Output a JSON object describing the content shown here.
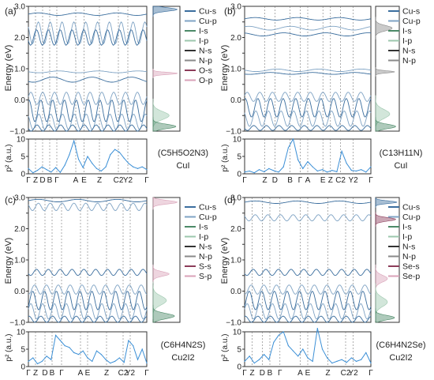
{
  "figure": {
    "background": "#ffffff",
    "axis_color": "#333333",
    "kpath_line_color": "#777777"
  },
  "chart_data": [
    {
      "type": "line",
      "panel": "a",
      "panel_label": "(a)",
      "compound_name": "(C5H5O2N3)",
      "compound_sub": "CuI",
      "band_ylabel": "Energy (eV)",
      "p2_ylabel": "p² (a.u.)",
      "band_ylim": [
        -1.0,
        3.0
      ],
      "band_yticks": [
        "-1.0",
        "-0.5",
        "0.0",
        "0.5",
        "1.0",
        "1.5",
        "2.0",
        "2.5",
        "3.0"
      ],
      "band_ytick_labels": [
        "−1.0",
        "",
        "0.0",
        "",
        "1.0",
        "",
        "2.0",
        "",
        "3.0"
      ],
      "p2_ylim": [
        0,
        10
      ],
      "p2_ytick_labels": [
        "0",
        "5",
        "10"
      ],
      "kpath_labels": [
        "Γ",
        "Z",
        "D",
        "B",
        "Γ",
        "A",
        "E",
        "Z",
        "C2",
        "Y2",
        "Γ"
      ],
      "kpath_x": [
        0,
        0.06,
        0.12,
        0.18,
        0.24,
        0.4,
        0.47,
        0.6,
        0.76,
        0.84,
        1.0
      ],
      "legend": [
        "Cu-s",
        "Cu-p",
        "I-s",
        "I-p",
        "N-s",
        "N-p",
        "O-s",
        "O-p"
      ],
      "legend_colors": [
        "#3b6e9e",
        "#7fa3c4",
        "#4c8a68",
        "#9cc7ad",
        "#333333",
        "#8a8a8a",
        "#8c3c5a",
        "#d9a2b8"
      ],
      "pdos_bands": [
        {
          "center": 2.9,
          "width": 0.08,
          "height": 0.9,
          "color": "#3b6e9e"
        },
        {
          "center": 0.85,
          "width": 0.05,
          "height": 0.9,
          "color": "#d9a2b8"
        },
        {
          "center": -0.5,
          "width": 0.18,
          "height": 0.6,
          "color": "#9cc7ad"
        },
        {
          "center": -0.85,
          "width": 0.1,
          "height": 0.85,
          "color": "#4c8a68"
        }
      ],
      "bands": [
        {
          "shape": "flat",
          "level": 2.75,
          "amp": 0.04
        },
        {
          "shape": "wave",
          "level": 2.15,
          "amp": 0.35
        },
        {
          "shape": "wave",
          "level": 2.0,
          "amp": 0.25
        },
        {
          "shape": "flat",
          "level": 0.9,
          "amp": 0.03
        },
        {
          "shape": "flat",
          "level": 0.65,
          "amp": 0.08
        },
        {
          "shape": "wave",
          "level": 0.05,
          "amp": 0.2
        },
        {
          "shape": "wave",
          "level": -0.35,
          "amp": 0.35
        },
        {
          "shape": "wave",
          "level": -0.7,
          "amp": 0.25
        },
        {
          "shape": "wave",
          "level": -0.9,
          "amp": 0.1
        }
      ],
      "p2_values": [
        1.5,
        0.3,
        1.0,
        2.0,
        1.2,
        0.5,
        1.8,
        0.4,
        2.5,
        5.5,
        9.5,
        4.2,
        1.8,
        5.0,
        3.0,
        1.5,
        0.8,
        2.0,
        5.5,
        7.0,
        6.2,
        4.5,
        3.0,
        2.0,
        1.5,
        2.0,
        1.2
      ]
    },
    {
      "type": "line",
      "panel": "b",
      "panel_label": "(b)",
      "compound_name": "(C13H11N)",
      "compound_sub": "CuI",
      "band_ylabel": "Energy (eV)",
      "p2_ylabel": "p² (a.u.)",
      "band_ylim": [
        -1.0,
        3.0
      ],
      "band_yticks": [
        "-1.0",
        "-0.5",
        "0.0",
        "0.5",
        "1.0",
        "1.5",
        "2.0",
        "2.5",
        "3.0"
      ],
      "band_ytick_labels": [
        "−1.0",
        "",
        "0.0",
        "",
        "1.0",
        "",
        "2.0",
        "",
        "3.0"
      ],
      "p2_ylim": [
        0,
        10
      ],
      "p2_ytick_labels": [
        "0",
        "5",
        "10"
      ],
      "kpath_labels": [
        "Γ",
        "Z",
        "D",
        "B",
        "Γ",
        "A",
        "E",
        "Z",
        "C2",
        "Y2",
        "Γ"
      ],
      "kpath_x": [
        0,
        0.16,
        0.24,
        0.36,
        0.44,
        0.5,
        0.62,
        0.68,
        0.76,
        0.86,
        1.0
      ],
      "legend": [
        "Cu-s",
        "Cu-p",
        "I-s",
        "I-p",
        "N-s",
        "N-p"
      ],
      "legend_colors": [
        "#3b6e9e",
        "#7fa3c4",
        "#4c8a68",
        "#9cc7ad",
        "#333333",
        "#8a8a8a"
      ],
      "pdos_bands": [
        {
          "center": 2.3,
          "width": 0.12,
          "height": 0.7,
          "color": "#8a8a8a"
        },
        {
          "center": 0.9,
          "width": 0.05,
          "height": 0.8,
          "color": "#8a8a8a"
        },
        {
          "center": -0.45,
          "width": 0.2,
          "height": 0.6,
          "color": "#9cc7ad"
        },
        {
          "center": -0.85,
          "width": 0.1,
          "height": 0.85,
          "color": "#4c8a68"
        }
      ],
      "bands": [
        {
          "shape": "flat",
          "level": 2.6,
          "amp": 0.04
        },
        {
          "shape": "flat",
          "level": 2.3,
          "amp": 0.06
        },
        {
          "shape": "flat",
          "level": 2.1,
          "amp": 0.05
        },
        {
          "shape": "flat",
          "level": 0.95,
          "amp": 0.04
        },
        {
          "shape": "flat",
          "level": 0.85,
          "amp": 0.03
        },
        {
          "shape": "wave",
          "level": 0.1,
          "amp": 0.15
        },
        {
          "shape": "wave",
          "level": -0.25,
          "amp": 0.3
        },
        {
          "shape": "wave",
          "level": -0.6,
          "amp": 0.25
        },
        {
          "shape": "wave",
          "level": -0.9,
          "amp": 0.08
        }
      ],
      "p2_values": [
        0.5,
        0.8,
        0.3,
        1.2,
        0.6,
        1.5,
        0.9,
        0.5,
        2.0,
        7.5,
        10.0,
        4.0,
        1.5,
        3.5,
        2.0,
        0.8,
        1.2,
        0.5,
        1.0,
        0.6,
        6.5,
        3.0,
        1.0,
        0.8,
        1.2,
        0.5,
        2.0
      ]
    },
    {
      "type": "line",
      "panel": "c",
      "panel_label": "(c)",
      "compound_name": "(C6H4N2S)",
      "compound_sub": "Cu2I2",
      "band_ylabel": "Energy (eV)",
      "p2_ylabel": "p² (a.u.)",
      "band_ylim": [
        -1.0,
        3.0
      ],
      "band_yticks": [
        "-1.0",
        "-0.5",
        "0.0",
        "0.5",
        "1.0",
        "1.5",
        "2.0",
        "2.5",
        "3.0"
      ],
      "band_ytick_labels": [
        "−1.0",
        "",
        "0.0",
        "",
        "1.0",
        "",
        "2.0",
        "",
        "3.0"
      ],
      "p2_ylim": [
        0,
        10
      ],
      "p2_ytick_labels": [
        "0",
        "5",
        "10"
      ],
      "kpath_labels": [
        "Γ",
        "Z",
        "D",
        "B",
        "Γ",
        "A",
        "E",
        "Z",
        "C2",
        "Y2",
        "Γ"
      ],
      "kpath_x": [
        0,
        0.06,
        0.14,
        0.2,
        0.28,
        0.44,
        0.5,
        0.66,
        0.8,
        0.86,
        1.0
      ],
      "legend": [
        "Cu-s",
        "Cu-p",
        "I-s",
        "I-p",
        "N-s",
        "N-p",
        "S-s",
        "S-p"
      ],
      "legend_colors": [
        "#3b6e9e",
        "#7fa3c4",
        "#4c8a68",
        "#9cc7ad",
        "#333333",
        "#8a8a8a",
        "#8c3c5a",
        "#d9a2b8"
      ],
      "pdos_bands": [
        {
          "center": 2.85,
          "width": 0.08,
          "height": 0.9,
          "color": "#d9a2b8"
        },
        {
          "center": 0.55,
          "width": 0.1,
          "height": 0.6,
          "color": "#d9a2b8"
        },
        {
          "center": -0.3,
          "width": 0.2,
          "height": 0.5,
          "color": "#9cc7ad"
        },
        {
          "center": -0.8,
          "width": 0.12,
          "height": 0.8,
          "color": "#4c8a68"
        }
      ],
      "bands": [
        {
          "shape": "flat",
          "level": 2.9,
          "amp": 0.04
        },
        {
          "shape": "wave",
          "level": 2.7,
          "amp": 0.12
        },
        {
          "shape": "wave",
          "level": 0.6,
          "amp": 0.1
        },
        {
          "shape": "wave",
          "level": 0.05,
          "amp": 0.15
        },
        {
          "shape": "wave",
          "level": -0.3,
          "amp": 0.3
        },
        {
          "shape": "wave",
          "level": -0.65,
          "amp": 0.25
        },
        {
          "shape": "wave",
          "level": -0.9,
          "amp": 0.1
        }
      ],
      "p2_values": [
        1.5,
        2.5,
        0.8,
        1.5,
        3.0,
        2.0,
        9.0,
        7.5,
        6.0,
        5.5,
        4.0,
        3.5,
        4.5,
        2.5,
        1.5,
        4.5,
        3.5,
        2.0,
        1.0,
        1.5,
        2.5,
        1.2,
        7.5,
        6.0,
        2.0,
        5.0,
        1.0
      ]
    },
    {
      "type": "line",
      "panel": "d",
      "panel_label": "(d)",
      "compound_name": "(C6H4N2Se)",
      "compound_sub": "Cu2I2",
      "band_ylabel": "Energy (eV)",
      "p2_ylabel": "p² (a.u.)",
      "band_ylim": [
        -1.0,
        3.0
      ],
      "band_yticks": [
        "-1.0",
        "-0.5",
        "0.0",
        "0.5",
        "1.0",
        "1.5",
        "2.0",
        "2.5",
        "3.0"
      ],
      "band_ytick_labels": [
        "−1.0",
        "",
        "0.0",
        "",
        "1.0",
        "",
        "2.0",
        "",
        "3.0"
      ],
      "p2_ylim": [
        0,
        10
      ],
      "p2_ytick_labels": [
        "0",
        "5",
        "10"
      ],
      "kpath_labels": [
        "Γ",
        "Z",
        "D",
        "B",
        "Γ",
        "A",
        "E",
        "Z",
        "C2",
        "Y2",
        "Γ"
      ],
      "kpath_x": [
        0,
        0.06,
        0.14,
        0.2,
        0.28,
        0.44,
        0.5,
        0.66,
        0.8,
        0.86,
        1.0
      ],
      "legend": [
        "Cu-s",
        "Cu-p",
        "I-s",
        "I-p",
        "N-s",
        "N-p",
        "Se-s",
        "Se-p"
      ],
      "legend_colors": [
        "#3b6e9e",
        "#7fa3c4",
        "#4c8a68",
        "#9cc7ad",
        "#333333",
        "#8a8a8a",
        "#8c3c5a",
        "#d9a2b8"
      ],
      "pdos_bands": [
        {
          "center": 2.85,
          "width": 0.06,
          "height": 0.9,
          "color": "#3b6e9e"
        },
        {
          "center": 2.3,
          "width": 0.08,
          "height": 0.85,
          "color": "#8c3c5a"
        },
        {
          "center": 0.4,
          "width": 0.15,
          "height": 0.5,
          "color": "#d9a2b8"
        },
        {
          "center": -0.35,
          "width": 0.2,
          "height": 0.5,
          "color": "#9cc7ad"
        },
        {
          "center": -0.85,
          "width": 0.1,
          "height": 0.8,
          "color": "#4c8a68"
        }
      ],
      "bands": [
        {
          "shape": "flat",
          "level": 2.85,
          "amp": 0.04
        },
        {
          "shape": "wave",
          "level": 2.35,
          "amp": 0.1
        },
        {
          "shape": "wave",
          "level": 0.6,
          "amp": 0.1
        },
        {
          "shape": "wave",
          "level": 0.05,
          "amp": 0.15
        },
        {
          "shape": "wave",
          "level": -0.3,
          "amp": 0.3
        },
        {
          "shape": "wave",
          "level": -0.65,
          "amp": 0.25
        },
        {
          "shape": "wave",
          "level": -0.9,
          "amp": 0.1
        }
      ],
      "p2_values": [
        1.5,
        3.0,
        1.0,
        2.0,
        3.5,
        2.0,
        7.0,
        9.0,
        10.0,
        6.0,
        4.5,
        3.0,
        5.0,
        2.5,
        1.5,
        11.0,
        5.0,
        2.5,
        1.0,
        1.5,
        2.0,
        1.2,
        2.5,
        1.5,
        2.0,
        4.0,
        1.0
      ]
    }
  ]
}
